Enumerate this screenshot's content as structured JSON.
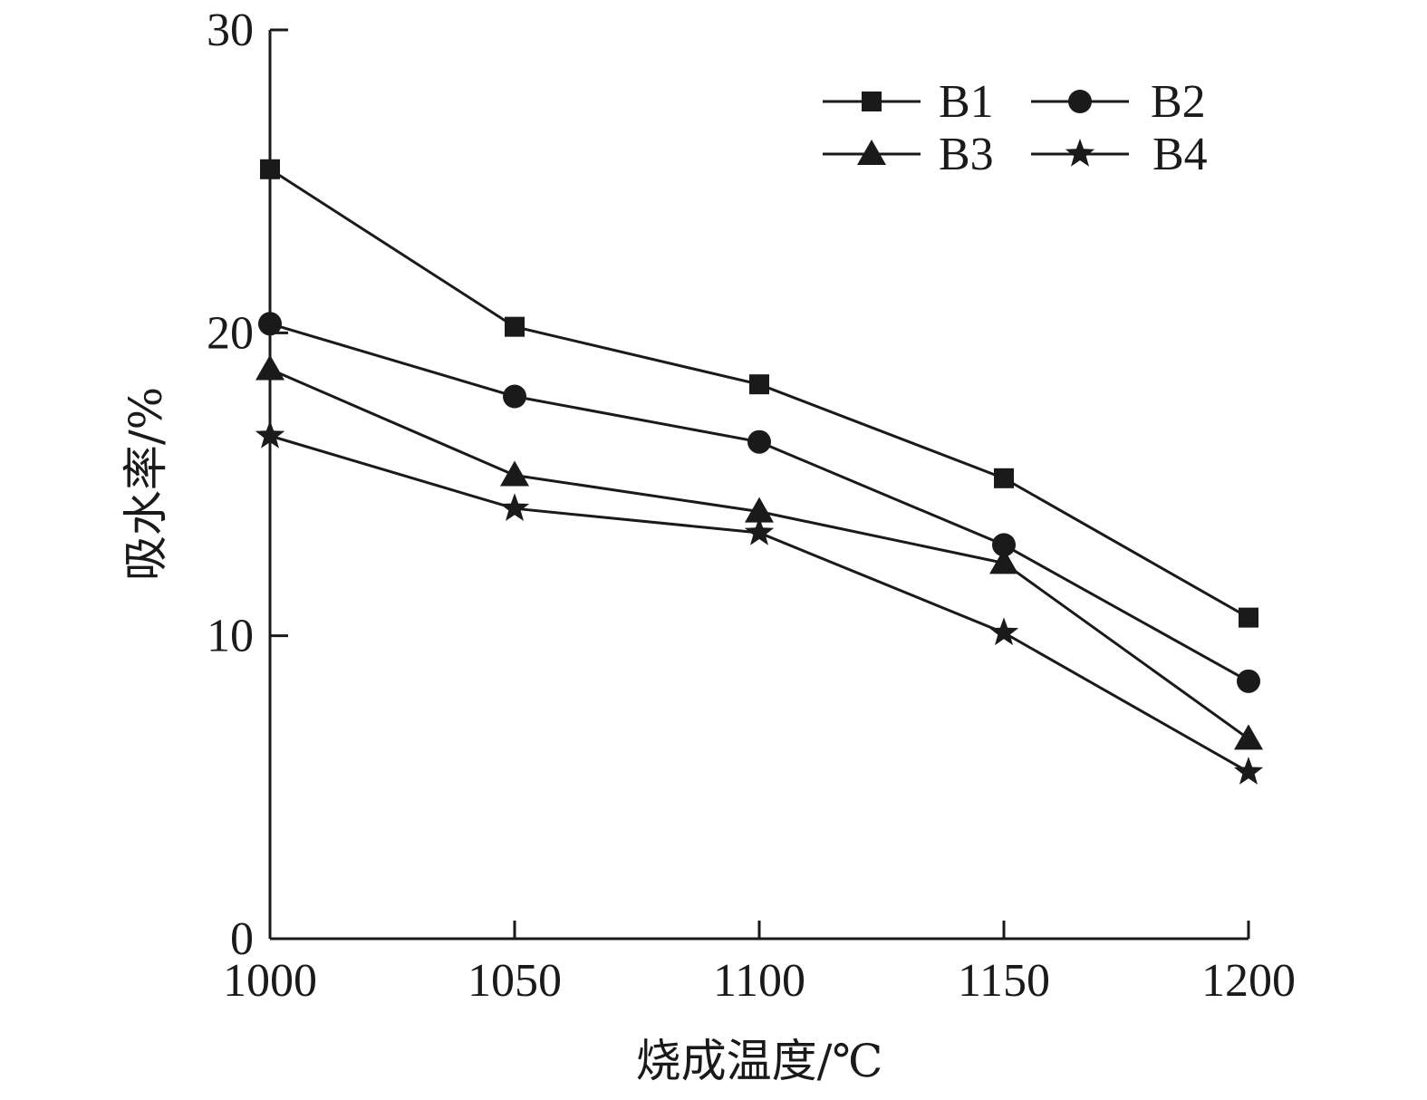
{
  "chart_data": {
    "type": "line",
    "title": "",
    "xlabel": "烧成温度/℃",
    "ylabel": "吸水率/%",
    "x": [
      1000,
      1050,
      1100,
      1150,
      1200
    ],
    "xlim": [
      1000,
      1200
    ],
    "ylim": [
      0,
      30
    ],
    "xticks": [
      "1000",
      "1050",
      "1100",
      "1150",
      "1200"
    ],
    "yticks": [
      "0",
      "10",
      "20",
      "30"
    ],
    "grid": false,
    "legend_position": "top-right",
    "series": [
      {
        "name": "B1",
        "marker": "square",
        "values": [
          25.4,
          20.2,
          18.3,
          15.2,
          10.6
        ]
      },
      {
        "name": "B2",
        "marker": "circle",
        "values": [
          20.3,
          17.9,
          16.4,
          13.0,
          8.5
        ]
      },
      {
        "name": "B3",
        "marker": "triangle",
        "values": [
          18.8,
          15.3,
          14.1,
          12.4,
          6.6
        ]
      },
      {
        "name": "B4",
        "marker": "star",
        "values": [
          16.6,
          14.2,
          13.4,
          10.1,
          5.5
        ]
      }
    ],
    "colors": {
      "line": "#1a1a1a",
      "marker": "#1a1a1a",
      "background": "#ffffff"
    }
  }
}
